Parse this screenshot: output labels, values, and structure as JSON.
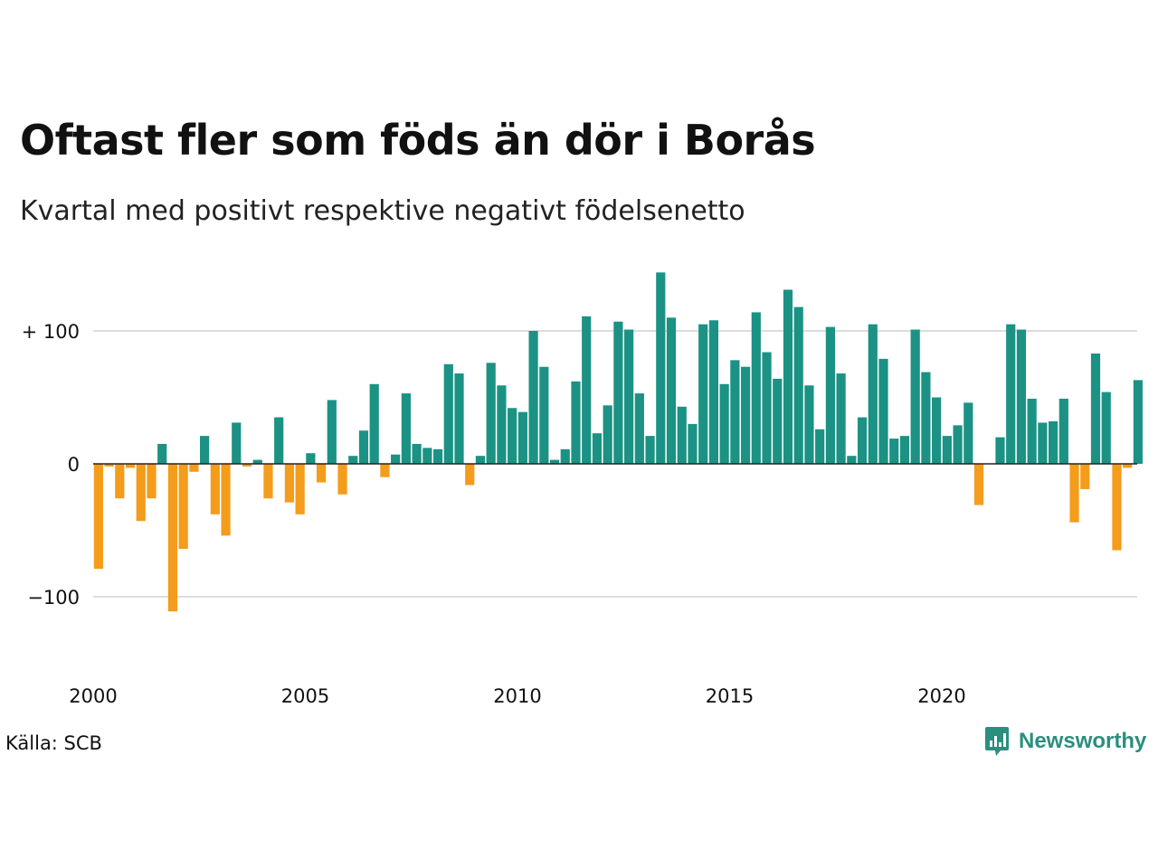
{
  "header": {
    "title": "Oftast fler som föds än dör i Borås",
    "subtitle": "Kvartal med positivt respektive negativt födelsenetto"
  },
  "footer": {
    "source": "Källa: SCB",
    "brand": "Newsworthy",
    "brand_icon": "newsworthy-logo-icon"
  },
  "colors": {
    "positive": "#1b9284",
    "negative": "#f49c1b",
    "grid": "#dddddd",
    "baseline": "#222222",
    "brand": "#2a8f7e"
  },
  "chart_data": {
    "type": "bar",
    "title": "Oftast fler som föds än dör i Borås",
    "subtitle": "Kvartal med positivt respektive negativt födelsenetto",
    "xlabel": "",
    "ylabel": "",
    "ylim": [
      -150,
      150
    ],
    "yticks": [
      {
        "value": 100,
        "label": "+ 100"
      },
      {
        "value": 0,
        "label": "0"
      },
      {
        "value": -100,
        "label": "−100"
      }
    ],
    "xticks": [
      {
        "value": 2000,
        "label": "2000"
      },
      {
        "value": 2005,
        "label": "2005"
      },
      {
        "value": 2010,
        "label": "2010"
      },
      {
        "value": 2015,
        "label": "2015"
      },
      {
        "value": 2020,
        "label": "2020"
      }
    ],
    "grid": true,
    "x_start": "2000 Q1",
    "frequency": "quarterly",
    "values": [
      -79,
      -2,
      -26,
      -3,
      -43,
      -26,
      15,
      -111,
      -64,
      -6,
      21,
      -38,
      -54,
      31,
      -2,
      3,
      -26,
      35,
      -29,
      -38,
      8,
      -14,
      48,
      -23,
      6,
      25,
      60,
      -10,
      7,
      53,
      15,
      12,
      11,
      75,
      68,
      -16,
      6,
      76,
      59,
      42,
      39,
      100,
      73,
      3,
      11,
      62,
      111,
      23,
      44,
      107,
      101,
      53,
      21,
      144,
      110,
      43,
      30,
      105,
      108,
      60,
      78,
      73,
      114,
      84,
      64,
      131,
      118,
      59,
      26,
      103,
      68,
      6,
      35,
      105,
      79,
      19,
      21,
      101,
      69,
      50,
      21,
      29,
      46,
      -31,
      0,
      20,
      105,
      101,
      49,
      31,
      32,
      49,
      -44,
      -19,
      83,
      54,
      -65,
      -3,
      63
    ]
  }
}
